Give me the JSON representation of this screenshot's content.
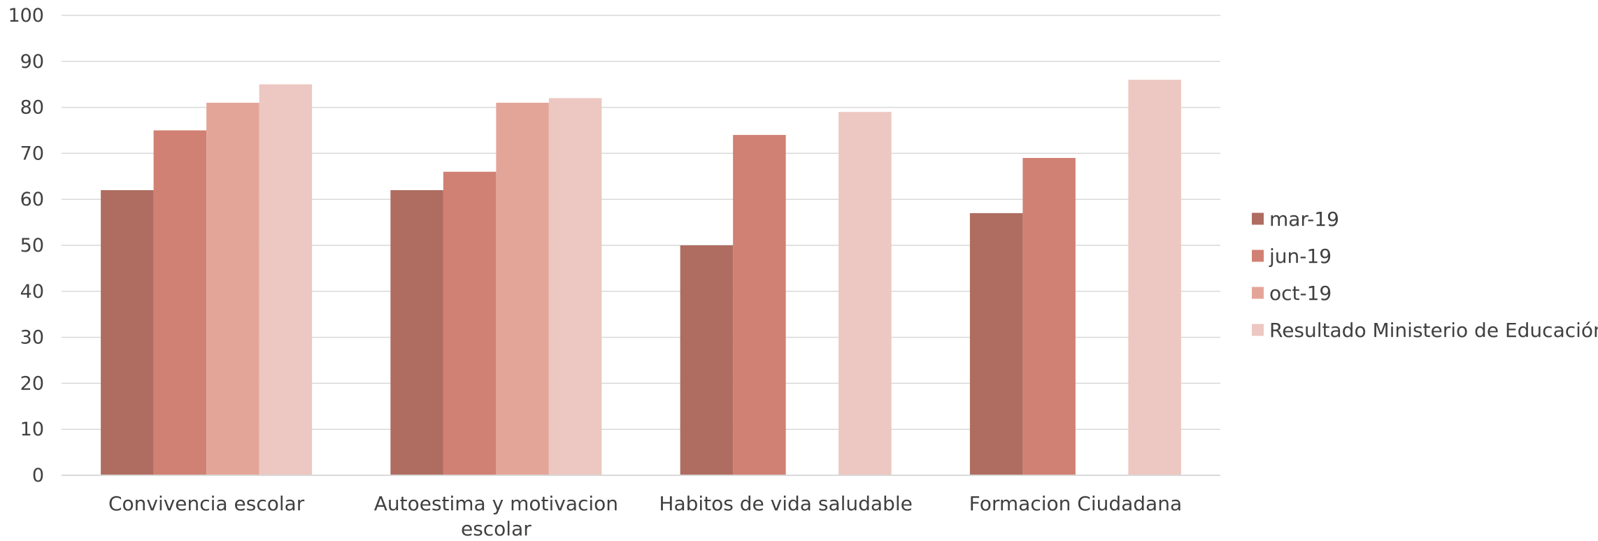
{
  "chart_data": {
    "type": "bar",
    "categories": [
      [
        "Convivencia escolar"
      ],
      [
        "Autoestima y motivacion",
        "escolar"
      ],
      [
        "Habitos de vida saludable"
      ],
      [
        "Formacion Ciudadana"
      ]
    ],
    "series": [
      {
        "name": "mar-19",
        "color": "#ae6d60",
        "values": [
          62,
          62,
          50,
          57
        ]
      },
      {
        "name": "jun-19",
        "color": "#d08173",
        "values": [
          75,
          66,
          74,
          69
        ]
      },
      {
        "name": "oct-19",
        "color": "#e4a599",
        "values": [
          81,
          81,
          null,
          null
        ]
      },
      {
        "name": "Resultado Ministerio de Educación",
        "color": "#edc7c1",
        "values": [
          85,
          82,
          79,
          86
        ]
      }
    ],
    "ylim": [
      0,
      100
    ],
    "yticks": [
      0,
      10,
      20,
      30,
      40,
      50,
      60,
      70,
      80,
      90,
      100
    ],
    "grid": true,
    "legend_position": "right",
    "xlabel": "",
    "ylabel": ""
  }
}
